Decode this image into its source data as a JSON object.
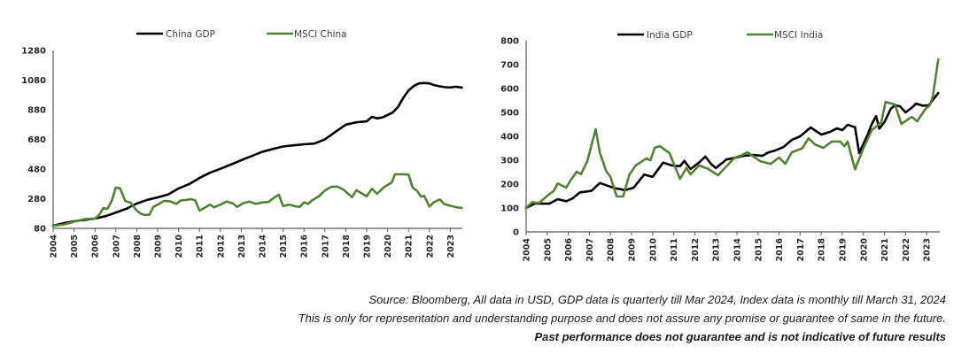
{
  "colors": {
    "gdp": "#000000",
    "msci": "#548235"
  },
  "chart_data": [
    {
      "type": "line",
      "title": "",
      "xlabel": "",
      "ylabel": "",
      "xlim": [
        2004,
        2023.55
      ],
      "ylim": [
        80,
        1280
      ],
      "yticks": [
        80,
        280,
        480,
        680,
        880,
        1080,
        1280
      ],
      "xticks": [
        2004,
        2005,
        2006,
        2007,
        2008,
        2009,
        2010,
        2011,
        2012,
        2013,
        2014,
        2015,
        2016,
        2017,
        2018,
        2019,
        2020,
        2021,
        2022,
        2023
      ],
      "grid": false,
      "legend_position": "top-center",
      "series": [
        {
          "name": "China GDP",
          "color": "#000000",
          "x": [
            2004,
            2004.5,
            2005,
            2005.5,
            2006,
            2006.5,
            2007,
            2007.5,
            2008,
            2008.5,
            2009,
            2009.5,
            2010,
            2010.5,
            2011,
            2011.5,
            2012,
            2012.5,
            2013,
            2013.5,
            2014,
            2014.5,
            2015,
            2015.5,
            2016,
            2016.5,
            2017,
            2017.5,
            2018,
            2018.5,
            2019,
            2019.25,
            2019.5,
            2019.75,
            2020,
            2020.25,
            2020.5,
            2020.75,
            2021,
            2021.25,
            2021.5,
            2021.75,
            2022,
            2022.25,
            2022.5,
            2022.75,
            2023,
            2023.25,
            2023.55
          ],
          "values": [
            98,
            115,
            128,
            137,
            146,
            162,
            187,
            212,
            247,
            272,
            289,
            308,
            349,
            378,
            420,
            455,
            482,
            510,
            540,
            568,
            596,
            615,
            632,
            640,
            647,
            652,
            680,
            730,
            780,
            795,
            802,
            832,
            822,
            828,
            845,
            862,
            900,
            960,
            1010,
            1040,
            1058,
            1060,
            1058,
            1045,
            1038,
            1032,
            1030,
            1035,
            1030
          ]
        },
        {
          "name": "MSCI China",
          "color": "#548235",
          "x": [
            2004,
            2004.5,
            2005,
            2005.5,
            2006,
            2006.2,
            2006.4,
            2006.6,
            2006.8,
            2007,
            2007.2,
            2007.45,
            2007.7,
            2008,
            2008.2,
            2008.4,
            2008.6,
            2008.8,
            2009,
            2009.3,
            2009.6,
            2009.9,
            2010.1,
            2010.4,
            2010.6,
            2010.8,
            2011,
            2011.2,
            2011.5,
            2011.7,
            2012,
            2012.3,
            2012.6,
            2012.8,
            2013.1,
            2013.4,
            2013.7,
            2014,
            2014.3,
            2014.6,
            2014.8,
            2015,
            2015.3,
            2015.6,
            2015.8,
            2016,
            2016.2,
            2016.4,
            2016.7,
            2017,
            2017.3,
            2017.6,
            2017.9,
            2018.3,
            2018.5,
            2019,
            2019.25,
            2019.5,
            2019.8,
            2020.2,
            2020.35,
            2020.7,
            2021,
            2021.2,
            2021.4,
            2021.6,
            2021.75,
            2022,
            2022.2,
            2022.5,
            2022.7,
            2023,
            2023.3,
            2023.55
          ],
          "values": [
            98,
            105,
            125,
            142,
            146,
            170,
            217,
            212,
            265,
            355,
            350,
            265,
            253,
            200,
            178,
            170,
            172,
            225,
            240,
            265,
            262,
            245,
            268,
            272,
            277,
            268,
            200,
            215,
            240,
            222,
            240,
            260,
            248,
            225,
            250,
            260,
            245,
            255,
            258,
            290,
            307,
            230,
            240,
            228,
            225,
            255,
            245,
            270,
            295,
            335,
            360,
            362,
            340,
            290,
            337,
            297,
            347,
            313,
            355,
            390,
            445,
            445,
            443,
            355,
            335,
            293,
            300,
            227,
            255,
            275,
            245,
            232,
            222,
            218
          ]
        }
      ]
    },
    {
      "type": "line",
      "title": "",
      "xlabel": "",
      "ylabel": "",
      "xlim": [
        2004,
        2023.55
      ],
      "ylim": [
        0,
        800
      ],
      "yticks": [
        0,
        100,
        200,
        300,
        400,
        500,
        600,
        700,
        800
      ],
      "xticks": [
        2004,
        2005,
        2006,
        2007,
        2008,
        2009,
        2010,
        2011,
        2012,
        2013,
        2014,
        2015,
        2016,
        2017,
        2018,
        2019,
        2020,
        2021,
        2022,
        2023
      ],
      "grid": false,
      "legend_position": "top-center",
      "series": [
        {
          "name": "India GDP",
          "color": "#000000",
          "x": [
            2004,
            2004.4,
            2004.8,
            2005.1,
            2005.5,
            2005.9,
            2006.2,
            2006.55,
            2007.1,
            2007.5,
            2007.8,
            2008.2,
            2008.7,
            2009.1,
            2009.6,
            2010.0,
            2010.5,
            2010.9,
            2011.3,
            2011.5,
            2011.8,
            2012.2,
            2012.5,
            2012.8,
            2013.0,
            2013.5,
            2013.9,
            2014.3,
            2014.8,
            2015.2,
            2015.5,
            2015.8,
            2016.2,
            2016.6,
            2017.0,
            2017.5,
            2018.0,
            2018.4,
            2018.75,
            2019.0,
            2019.25,
            2019.6,
            2019.8,
            2020.2,
            2020.4,
            2020.6,
            2020.75,
            2021.0,
            2021.3,
            2021.5,
            2021.75,
            2022.0,
            2022.3,
            2022.5,
            2022.8,
            2023.1,
            2023.55
          ],
          "values": [
            100,
            118,
            118,
            118,
            137,
            128,
            140,
            165,
            172,
            205,
            195,
            183,
            175,
            185,
            240,
            230,
            290,
            278,
            275,
            297,
            263,
            290,
            315,
            282,
            267,
            303,
            310,
            318,
            322,
            318,
            333,
            340,
            355,
            385,
            400,
            437,
            407,
            418,
            433,
            426,
            448,
            438,
            330,
            407,
            452,
            485,
            432,
            460,
            515,
            530,
            525,
            500,
            520,
            537,
            528,
            530,
            581
          ]
        },
        {
          "name": "MSCI India",
          "color": "#548235",
          "x": [
            2004,
            2004.3,
            2004.6,
            2005.1,
            2005.3,
            2005.5,
            2005.9,
            2006.1,
            2006.4,
            2006.6,
            2006.9,
            2007.3,
            2007.5,
            2007.8,
            2008.0,
            2008.3,
            2008.6,
            2008.9,
            2009.2,
            2009.7,
            2009.9,
            2010.1,
            2010.35,
            2010.8,
            2011.3,
            2011.6,
            2011.8,
            2012.2,
            2012.6,
            2013.1,
            2013.9,
            2014.2,
            2014.5,
            2015.1,
            2015.6,
            2016.0,
            2016.3,
            2016.6,
            2017.1,
            2017.4,
            2017.7,
            2018.1,
            2018.5,
            2018.9,
            2019.1,
            2019.25,
            2019.6,
            2020.0,
            2020.4,
            2020.85,
            2021.05,
            2021.5,
            2021.8,
            2022.3,
            2022.55,
            2022.95,
            2023.15,
            2023.3,
            2023.55
          ],
          "values": [
            100,
            125,
            120,
            158,
            170,
            203,
            185,
            215,
            252,
            242,
            295,
            430,
            330,
            255,
            230,
            148,
            148,
            240,
            278,
            307,
            300,
            352,
            359,
            330,
            222,
            267,
            241,
            278,
            265,
            237,
            311,
            320,
            333,
            296,
            285,
            311,
            285,
            333,
            350,
            392,
            366,
            352,
            378,
            378,
            359,
            378,
            262,
            350,
            426,
            459,
            544,
            533,
            452,
            481,
            463,
            515,
            530,
            570,
            722
          ]
        }
      ]
    }
  ],
  "legends": [
    {
      "gdp_label": "China GDP",
      "msci_label": "MSCI China"
    },
    {
      "gdp_label": "India GDP",
      "msci_label": "MSCI India"
    }
  ],
  "footer": {
    "source": "Source: Bloomberg, All data in USD, GDP data is quarterly till Mar 2024, Index data is monthly till March 31, 2024",
    "disclaimer": "This is only for representation and understanding purpose and does not assure any promise or guarantee of same in the future.",
    "past_performance": "Past performance does not guarantee and is not indicative of future results"
  }
}
